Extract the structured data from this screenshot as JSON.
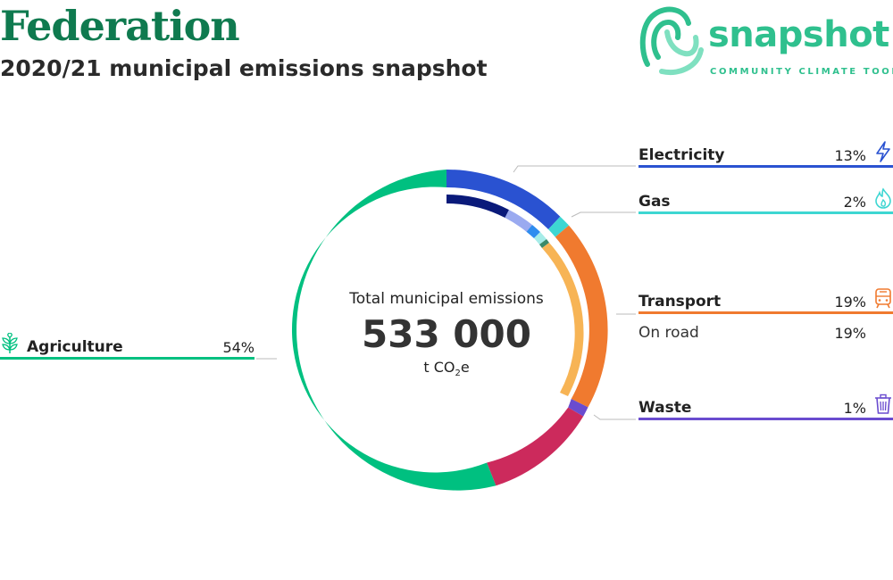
{
  "header": {
    "title": "Federation",
    "subtitle": "2020/21 municipal emissions snapshot"
  },
  "logo": {
    "name": "snapshot",
    "tagline": "COMMUNITY CLIMATE TOOL",
    "color": "#2fc08e"
  },
  "center": {
    "label": "Total municipal emissions",
    "value": "533 000",
    "unit_prefix": "t CO",
    "unit_sub": "2",
    "unit_suffix": "e"
  },
  "legend": {
    "electricity": {
      "label": "Electricity",
      "pct": "13%",
      "icon": "lightning-icon"
    },
    "gas": {
      "label": "Gas",
      "pct": "2%",
      "icon": "flame-icon"
    },
    "transport": {
      "label": "Transport",
      "pct": "19%",
      "icon": "train-icon"
    },
    "on_road": {
      "label": "On road",
      "pct": "19%"
    },
    "waste": {
      "label": "Waste",
      "pct": "1%",
      "icon": "trash-icon"
    },
    "agriculture": {
      "label": "Agriculture",
      "pct": "54%",
      "icon": "plant-icon"
    }
  },
  "chart_data": {
    "type": "pie",
    "style": "donut",
    "total": 533000,
    "unit": "t CO2e",
    "series": [
      {
        "name": "Electricity",
        "value": 13,
        "color": "#2a52d1"
      },
      {
        "name": "Gas",
        "value": 2,
        "color": "#3dd6d2"
      },
      {
        "name": "Transport",
        "value": 19,
        "color": "#f07a2f"
      },
      {
        "name": "Waste",
        "value": 1,
        "color": "#6a4ccf"
      },
      {
        "name": "Agriculture",
        "value": 54,
        "color": "#00c080"
      }
    ],
    "colors": {
      "unlabeled_segment": "#cc2a5c",
      "electricity_inner": [
        "#0a1a7a",
        "#9aaaf0",
        "#2f8cef"
      ],
      "gas_inner": [
        "#a6ece8",
        "#3a8a6a"
      ],
      "transport_inner": "#f7b455"
    }
  }
}
